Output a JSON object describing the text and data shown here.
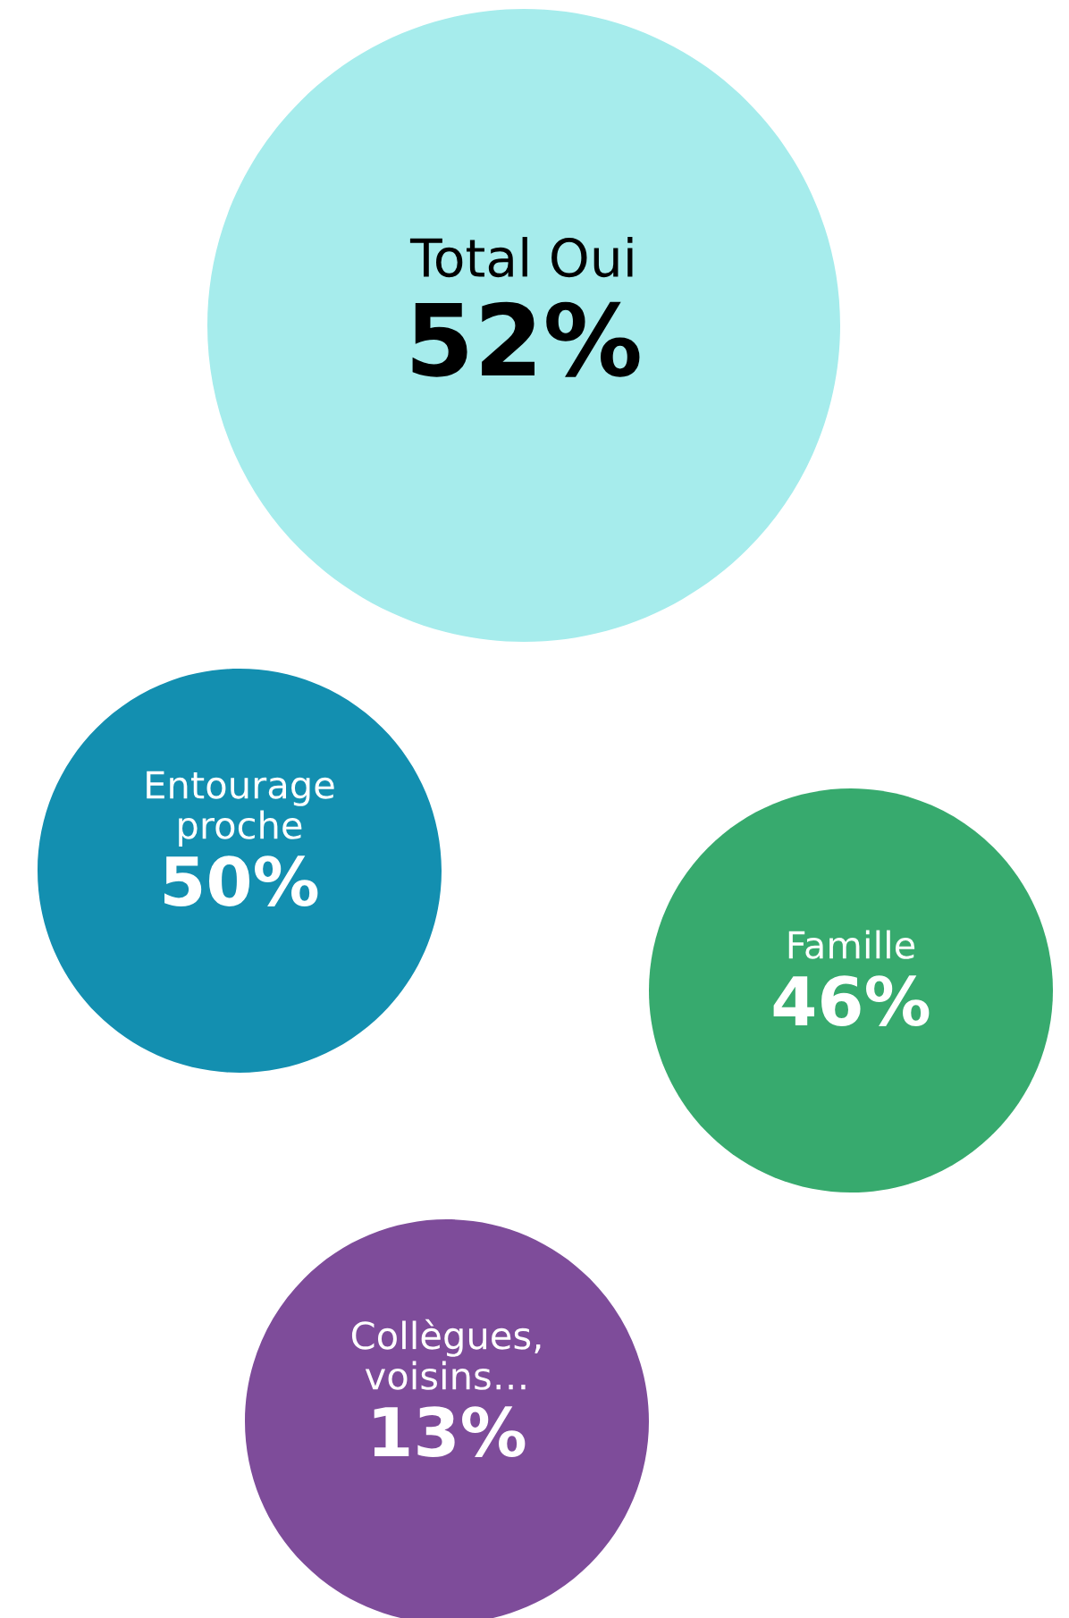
{
  "chart_data": {
    "type": "other",
    "categories": [
      "Total Oui",
      "Entourage\nproche",
      "Famille",
      "Collègues,\nvoisins…"
    ],
    "values": [
      52,
      50,
      46,
      13
    ],
    "value_labels": [
      "52%",
      "50%",
      "46%",
      "13%"
    ],
    "colors": [
      "#a6ecec",
      "#138fb0",
      "#37aa6e",
      "#7e4c9a"
    ]
  }
}
